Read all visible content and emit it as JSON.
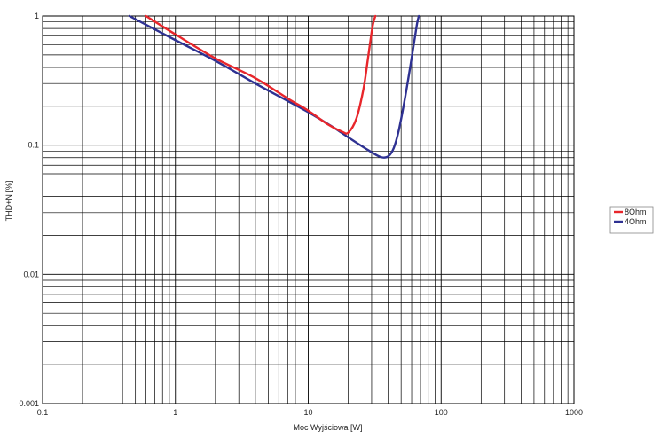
{
  "chart_data": {
    "type": "line",
    "xlabel": "Moc Wyjściowa [W]",
    "ylabel": "THD+N [%]",
    "x_scale": "log",
    "y_scale": "log",
    "xlim": [
      0.1,
      1000
    ],
    "ylim": [
      0.001,
      1
    ],
    "x_ticks": [
      "0.1",
      "1",
      "10",
      "100",
      "1000"
    ],
    "y_ticks": [
      "0.001",
      "0.01",
      "0.1",
      "1"
    ],
    "grid": true,
    "legend_position": "right",
    "series": [
      {
        "name": "8Ohm",
        "color": "#e8262b",
        "x": [
          0.6,
          1,
          2,
          4,
          7,
          10,
          14,
          18,
          20,
          23,
          26,
          28,
          30,
          31,
          32
        ],
        "y": [
          1.0,
          0.72,
          0.47,
          0.33,
          0.23,
          0.185,
          0.145,
          0.127,
          0.125,
          0.16,
          0.27,
          0.45,
          0.75,
          0.9,
          1.0
        ]
      },
      {
        "name": "4Ohm",
        "color": "#2e3192",
        "x": [
          0.45,
          1,
          2,
          4,
          7,
          10,
          15,
          20,
          28,
          35,
          40,
          44,
          48,
          53,
          58,
          63,
          66,
          68
        ],
        "y": [
          1.0,
          0.65,
          0.45,
          0.3,
          0.22,
          0.18,
          0.14,
          0.115,
          0.092,
          0.081,
          0.082,
          0.095,
          0.13,
          0.22,
          0.38,
          0.65,
          0.88,
          1.0
        ]
      }
    ]
  }
}
